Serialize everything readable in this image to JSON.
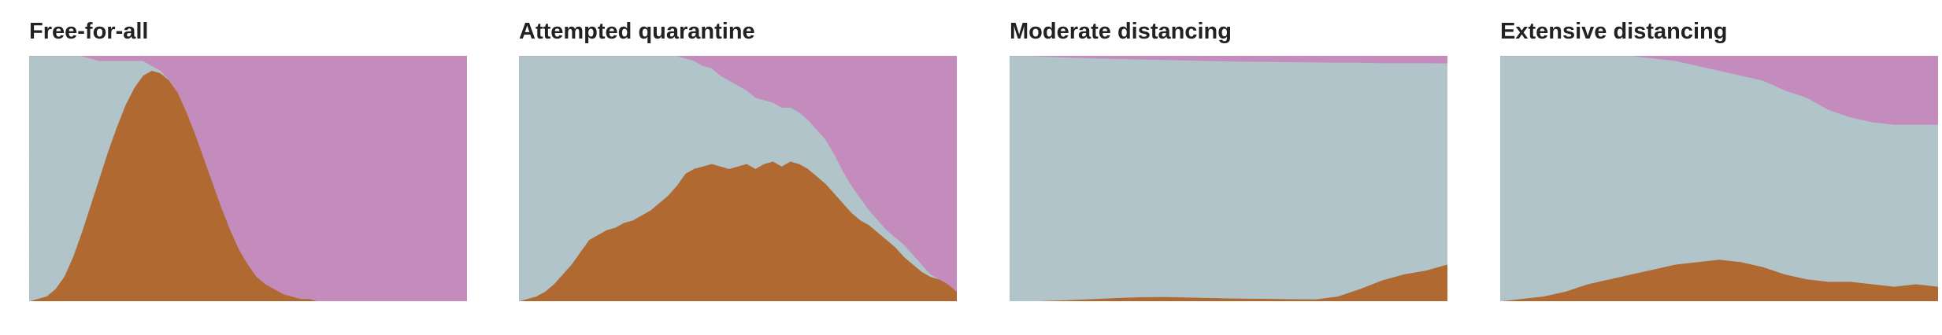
{
  "colors": {
    "susceptible": "#b0c4c9",
    "infected": "#b06930",
    "recovered": "#c48bbd"
  },
  "chart_data": [
    {
      "type": "area",
      "stacking": "proportional",
      "title": "Free-for-all",
      "xlabel": "",
      "ylabel": "",
      "ylim": [
        0,
        1
      ],
      "grid": false,
      "legend": "none",
      "x": [
        0,
        2,
        4,
        6,
        8,
        10,
        12,
        14,
        16,
        18,
        20,
        22,
        24,
        26,
        28,
        30,
        32,
        34,
        36,
        38,
        40,
        42,
        44,
        46,
        48,
        50,
        52,
        54,
        56,
        58,
        60,
        62,
        64,
        66,
        68,
        70,
        72,
        74,
        76,
        78,
        80,
        82,
        84,
        86,
        88,
        90,
        92,
        94,
        96,
        98,
        100
      ],
      "series": [
        {
          "key": "infected",
          "values": [
            0,
            0.01,
            0.02,
            0.05,
            0.1,
            0.18,
            0.28,
            0.39,
            0.5,
            0.61,
            0.71,
            0.8,
            0.87,
            0.92,
            0.94,
            0.93,
            0.9,
            0.85,
            0.77,
            0.68,
            0.58,
            0.48,
            0.38,
            0.29,
            0.21,
            0.15,
            0.1,
            0.07,
            0.05,
            0.03,
            0.02,
            0.01,
            0.01,
            0,
            0,
            0,
            0,
            0,
            0,
            0,
            0,
            0,
            0,
            0,
            0,
            0,
            0,
            0,
            0,
            0,
            0
          ]
        },
        {
          "key": "susceptible",
          "values": [
            1,
            0.99,
            0.98,
            0.95,
            0.9,
            0.82,
            0.72,
            0.6,
            0.48,
            0.37,
            0.27,
            0.18,
            0.11,
            0.06,
            0.02,
            0.01,
            0,
            0,
            0,
            0,
            0,
            0,
            0,
            0,
            0,
            0,
            0,
            0,
            0,
            0,
            0,
            0,
            0,
            0,
            0,
            0,
            0,
            0,
            0,
            0,
            0,
            0,
            0,
            0,
            0,
            0,
            0,
            0,
            0,
            0,
            0
          ]
        },
        {
          "key": "recovered",
          "values": [
            0,
            0,
            0,
            0,
            0,
            0,
            0,
            0.01,
            0.02,
            0.02,
            0.02,
            0.02,
            0.02,
            0.02,
            0.04,
            0.06,
            0.1,
            0.15,
            0.23,
            0.32,
            0.42,
            0.52,
            0.62,
            0.71,
            0.79,
            0.85,
            0.9,
            0.93,
            0.95,
            0.97,
            0.98,
            0.99,
            0.99,
            1,
            1,
            1,
            1,
            1,
            1,
            1,
            1,
            1,
            1,
            1,
            1,
            1,
            1,
            1,
            1,
            1,
            1
          ]
        }
      ]
    },
    {
      "type": "area",
      "stacking": "proportional",
      "title": "Attempted quarantine",
      "xlabel": "",
      "ylabel": "",
      "ylim": [
        0,
        1
      ],
      "grid": false,
      "legend": "none",
      "x": [
        0,
        2,
        4,
        6,
        8,
        10,
        12,
        14,
        16,
        18,
        20,
        22,
        24,
        26,
        28,
        30,
        32,
        34,
        36,
        38,
        40,
        42,
        44,
        46,
        48,
        50,
        52,
        54,
        56,
        58,
        60,
        62,
        64,
        66,
        68,
        70,
        72,
        74,
        76,
        78,
        80,
        82,
        84,
        86,
        88,
        90,
        92,
        94,
        96,
        98,
        100
      ],
      "series": [
        {
          "key": "infected",
          "values": [
            0,
            0.01,
            0.02,
            0.04,
            0.07,
            0.11,
            0.15,
            0.2,
            0.25,
            0.27,
            0.29,
            0.3,
            0.32,
            0.33,
            0.35,
            0.37,
            0.4,
            0.43,
            0.47,
            0.52,
            0.54,
            0.55,
            0.56,
            0.55,
            0.54,
            0.55,
            0.56,
            0.54,
            0.56,
            0.57,
            0.55,
            0.57,
            0.56,
            0.54,
            0.51,
            0.48,
            0.44,
            0.4,
            0.36,
            0.33,
            0.31,
            0.28,
            0.25,
            0.22,
            0.18,
            0.15,
            0.12,
            0.1,
            0.09,
            0.07,
            0.04
          ]
        },
        {
          "key": "susceptible",
          "values": [
            1,
            0.99,
            0.98,
            0.96,
            0.93,
            0.89,
            0.85,
            0.8,
            0.75,
            0.73,
            0.71,
            0.7,
            0.68,
            0.67,
            0.65,
            0.63,
            0.6,
            0.57,
            0.53,
            0.47,
            0.44,
            0.41,
            0.39,
            0.37,
            0.36,
            0.33,
            0.3,
            0.29,
            0.26,
            0.24,
            0.24,
            0.22,
            0.21,
            0.2,
            0.19,
            0.18,
            0.16,
            0.13,
            0.11,
            0.09,
            0.06,
            0.05,
            0.04,
            0.04,
            0.05,
            0.04,
            0.03,
            0.01,
            0,
            0,
            0
          ]
        },
        {
          "key": "recovered",
          "values": [
            0,
            0,
            0,
            0,
            0,
            0,
            0,
            0,
            0,
            0,
            0,
            0,
            0,
            0,
            0,
            0,
            0,
            0,
            0,
            0.01,
            0.02,
            0.04,
            0.05,
            0.08,
            0.1,
            0.12,
            0.14,
            0.17,
            0.18,
            0.19,
            0.21,
            0.21,
            0.23,
            0.26,
            0.3,
            0.34,
            0.4,
            0.47,
            0.53,
            0.58,
            0.63,
            0.67,
            0.71,
            0.74,
            0.77,
            0.81,
            0.85,
            0.89,
            0.91,
            0.93,
            0.96
          ]
        }
      ]
    },
    {
      "type": "area",
      "stacking": "proportional",
      "title": "Moderate distancing",
      "xlabel": "",
      "ylabel": "",
      "ylim": [
        0,
        1
      ],
      "grid": false,
      "legend": "none",
      "x": [
        0,
        5,
        10,
        15,
        20,
        25,
        30,
        35,
        40,
        45,
        50,
        55,
        60,
        65,
        70,
        75,
        80,
        85,
        90,
        95,
        100
      ],
      "series": [
        {
          "key": "infected",
          "values": [
            0,
            0,
            0.003,
            0.006,
            0.01,
            0.014,
            0.017,
            0.018,
            0.016,
            0.014,
            0.012,
            0.011,
            0.01,
            0.009,
            0.008,
            0.02,
            0.05,
            0.085,
            0.11,
            0.125,
            0.15
          ]
        },
        {
          "key": "susceptible",
          "values": [
            1,
            1,
            0.993,
            0.987,
            0.98,
            0.974,
            0.969,
            0.966,
            0.966,
            0.966,
            0.966,
            0.966,
            0.966,
            0.966,
            0.966,
            0.953,
            0.923,
            0.886,
            0.861,
            0.846,
            0.82
          ]
        },
        {
          "key": "recovered",
          "values": [
            0,
            0,
            0.004,
            0.007,
            0.01,
            0.012,
            0.014,
            0.016,
            0.018,
            0.02,
            0.022,
            0.023,
            0.024,
            0.025,
            0.026,
            0.027,
            0.027,
            0.029,
            0.029,
            0.029,
            0.03
          ]
        }
      ]
    },
    {
      "type": "area",
      "stacking": "proportional",
      "title": "Extensive distancing",
      "xlabel": "",
      "ylabel": "",
      "ylim": [
        0,
        1
      ],
      "grid": false,
      "legend": "none",
      "x": [
        0,
        5,
        10,
        15,
        20,
        25,
        30,
        35,
        40,
        45,
        50,
        55,
        60,
        65,
        70,
        75,
        80,
        85,
        90,
        95,
        100
      ],
      "series": [
        {
          "key": "infected",
          "values": [
            0,
            0.01,
            0.02,
            0.04,
            0.07,
            0.09,
            0.11,
            0.13,
            0.15,
            0.16,
            0.17,
            0.16,
            0.14,
            0.11,
            0.09,
            0.08,
            0.08,
            0.07,
            0.06,
            0.07,
            0.06
          ]
        },
        {
          "key": "susceptible",
          "values": [
            1,
            0.99,
            0.98,
            0.96,
            0.93,
            0.91,
            0.89,
            0.86,
            0.83,
            0.8,
            0.77,
            0.76,
            0.76,
            0.75,
            0.74,
            0.7,
            0.67,
            0.66,
            0.66,
            0.65,
            0.66
          ]
        },
        {
          "key": "recovered",
          "values": [
            0,
            0,
            0,
            0,
            0,
            0,
            0,
            0.01,
            0.02,
            0.04,
            0.06,
            0.08,
            0.1,
            0.14,
            0.17,
            0.22,
            0.25,
            0.27,
            0.28,
            0.28,
            0.28
          ]
        }
      ]
    }
  ]
}
